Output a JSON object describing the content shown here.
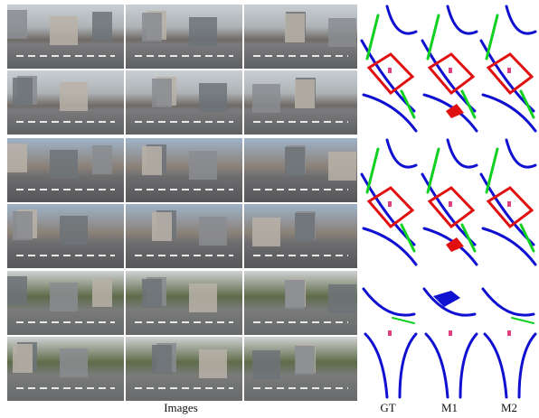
{
  "labels": {
    "images": "Images",
    "columns": [
      "GT",
      "M1",
      "M2"
    ]
  }
}
